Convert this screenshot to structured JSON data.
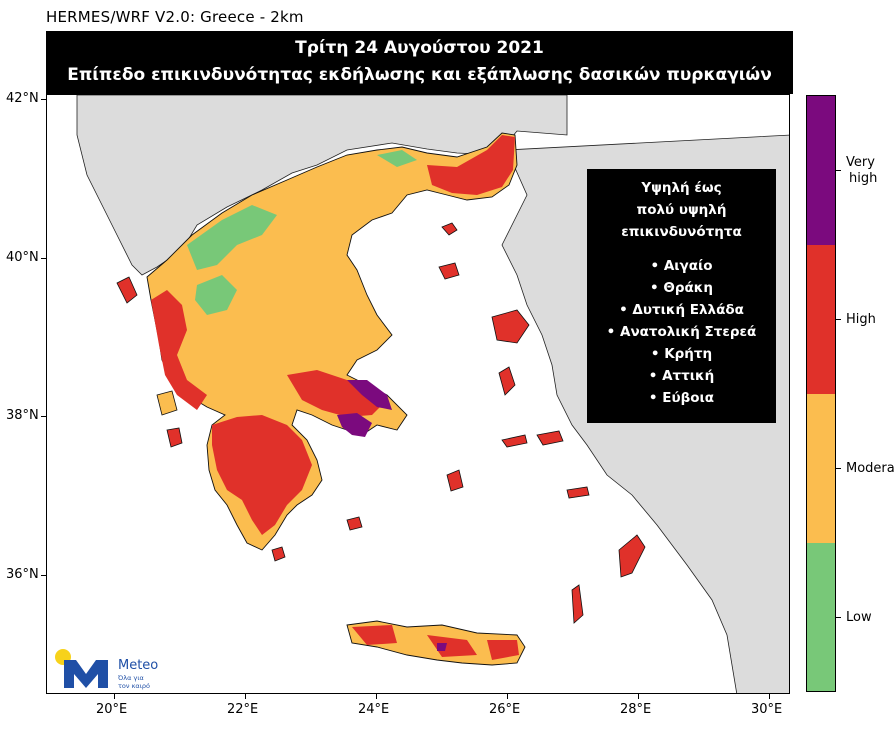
{
  "model_label": "HERMES/WRF V2.0: Greece - 2km",
  "title": {
    "line1": "Τρίτη 24 Αυγούστου 2021",
    "line2": "Επίπεδο επικινδυνότητας εκδήλωσης και εξάπλωσης δασικών πυρκαγιών"
  },
  "axes": {
    "lat_ticks": [
      "42°N",
      "40°N",
      "38°N",
      "36°N"
    ],
    "lon_ticks": [
      "20°E",
      "22°E",
      "24°E",
      "26°E",
      "28°E",
      "30°E"
    ]
  },
  "info_box": {
    "heading_lines": [
      "Υψηλή έως",
      "πολύ υψηλή",
      "επικινδυνότητα"
    ],
    "regions": [
      "Αιγαίο",
      "Θράκη",
      "Δυτική Ελλάδα",
      "Ανατολική Στερεά",
      "Κρήτη",
      "Αττική",
      "Εύβοια"
    ]
  },
  "legend": {
    "levels": [
      {
        "label": "Very high",
        "color": "#7b0a7e"
      },
      {
        "label": "High",
        "color": "#e0312a"
      },
      {
        "label": "Moderate",
        "color": "#fbbd4f"
      },
      {
        "label": "Low",
        "color": "#78c878"
      }
    ],
    "labels_display": [
      "Very",
      "high",
      "High",
      "Modera",
      "Low"
    ]
  },
  "colors": {
    "land_outside": "#dcdcdc",
    "sea": "#ffffff",
    "low": "#78c878",
    "moderate": "#fbbd4f",
    "high": "#e0312a",
    "very_high": "#7b0a7e"
  },
  "logo": {
    "name": "Meteo",
    "tagline_1": "Όλα για",
    "tagline_2": "τον καιρό"
  }
}
